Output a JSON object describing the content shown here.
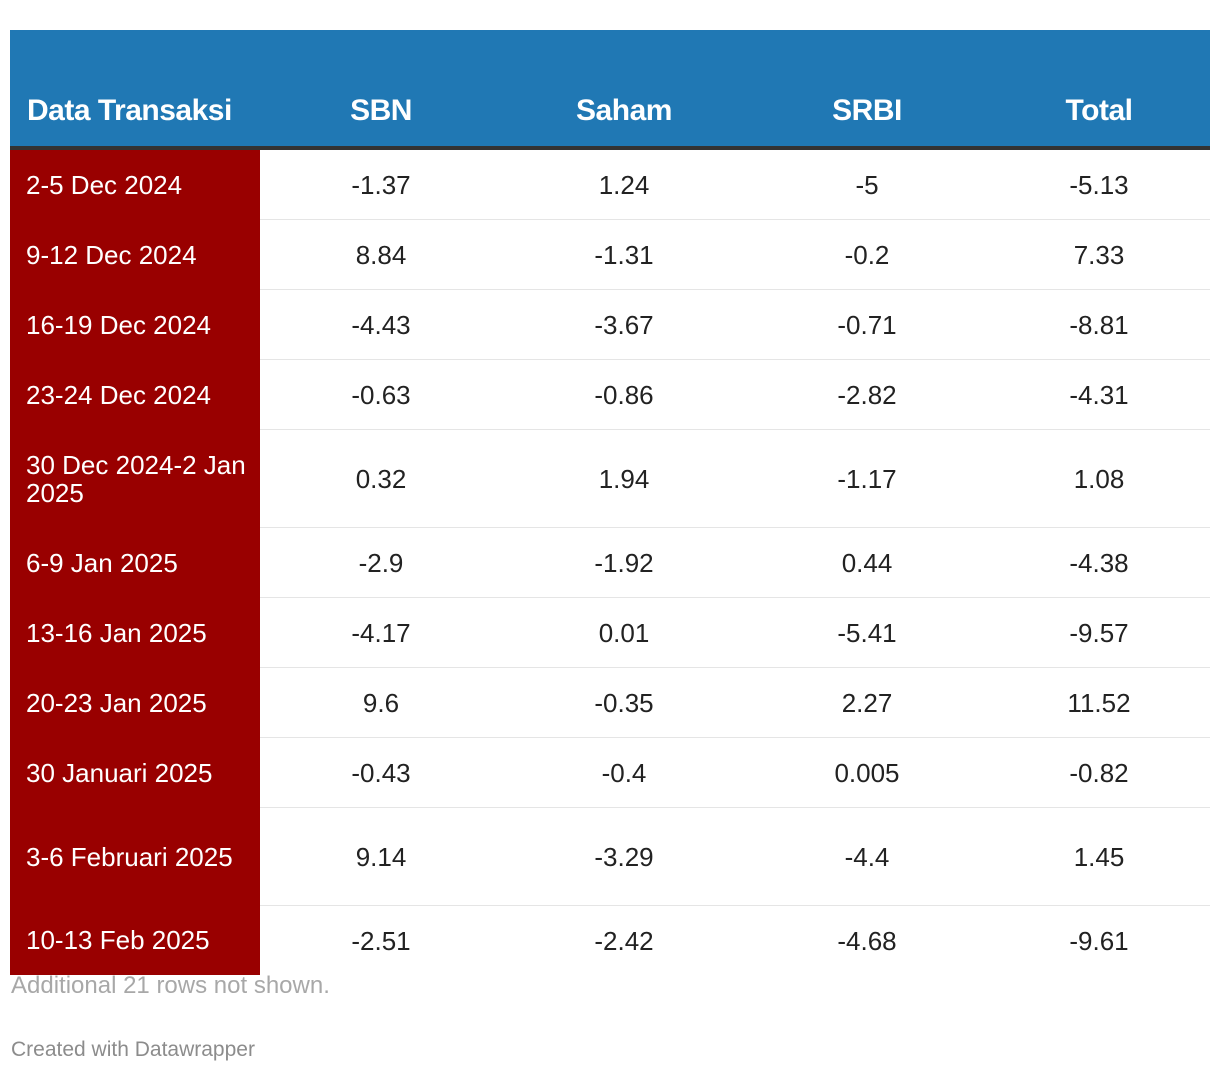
{
  "colors": {
    "header_bg": "#2078b4",
    "label_col_bg": "#990000",
    "header_rule": "#333333"
  },
  "note": "Additional 21 rows not shown.",
  "credit": "Created with Datawrapper",
  "chart_data": {
    "type": "table",
    "columns": [
      "Data Transaksi",
      "SBN",
      "Saham",
      "SRBI",
      "Total"
    ],
    "rows": [
      [
        "2-5 Dec 2024",
        "-1.37",
        "1.24",
        "-5",
        "-5.13"
      ],
      [
        "9-12 Dec 2024",
        "8.84",
        "-1.31",
        "-0.2",
        "7.33"
      ],
      [
        "16-19 Dec 2024",
        "-4.43",
        "-3.67",
        "-0.71",
        "-8.81"
      ],
      [
        "23-24 Dec 2024",
        "-0.63",
        "-0.86",
        "-2.82",
        "-4.31"
      ],
      [
        "30 Dec 2024-2 Jan 2025",
        "0.32",
        "1.94",
        "-1.17",
        "1.08"
      ],
      [
        "6-9 Jan 2025",
        "-2.9",
        "-1.92",
        "0.44",
        "-4.38"
      ],
      [
        "13-16 Jan 2025",
        "-4.17",
        "0.01",
        "-5.41",
        "-9.57"
      ],
      [
        "20-23 Jan 2025",
        "9.6",
        "-0.35",
        "2.27",
        "11.52"
      ],
      [
        "30 Januari 2025",
        "-0.43",
        "-0.4",
        "0.005",
        "-0.82"
      ],
      [
        "3-6 Februari 2025",
        "9.14",
        "-3.29",
        "-4.4",
        "1.45"
      ],
      [
        "10-13 Feb 2025",
        "-2.51",
        "-2.42",
        "-4.68",
        "-9.61"
      ]
    ]
  }
}
